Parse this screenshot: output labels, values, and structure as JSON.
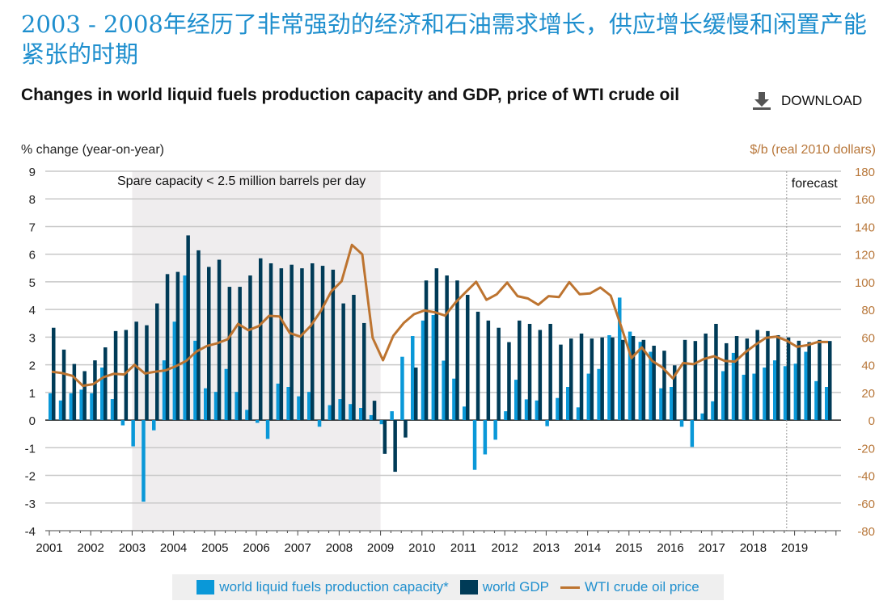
{
  "headline": "2003 - 2008年经历了非常强劲的经济和石油需求增长，供应增长缓慢和闲置产能紧张的时期",
  "download_label": "DOWNLOAD",
  "chart_data": {
    "type": "bar+line",
    "title": "Changes in world liquid fuels production capacity and GDP, price of WTI crude oil",
    "ylabel": "% change (year-on-year)",
    "y2label": "$/b (real 2010 dollars)",
    "ylim": [
      -4,
      9
    ],
    "y2lim": [
      -80,
      180
    ],
    "yticks": [
      -4,
      -3,
      -2,
      -1,
      0,
      1,
      2,
      3,
      4,
      5,
      6,
      7,
      8,
      9
    ],
    "y2ticks": [
      -80,
      -60,
      -40,
      -20,
      0,
      20,
      40,
      60,
      80,
      100,
      120,
      140,
      160,
      180
    ],
    "xticks": [
      "2001",
      "2002",
      "2003",
      "2004",
      "2005",
      "2006",
      "2007",
      "2008",
      "2009",
      "2010",
      "2011",
      "2012",
      "2013",
      "2014",
      "2015",
      "2016",
      "2017",
      "2018",
      "2019"
    ],
    "frequency": "quarterly, 2001Q1-2019Q4",
    "grid": true,
    "legend_placement": "bottom",
    "annotations": {
      "shaded": "Spare capacity < 2.5 million barrels per day",
      "shaded_range": [
        "2003",
        "2009"
      ],
      "forecast": "forecast",
      "forecast_start": "2018Q3"
    },
    "colors": {
      "capacity": "#0a98d8",
      "gdp": "#003b57",
      "wti": "#bd7430"
    },
    "series": [
      {
        "name": "world liquid fuels production capacity*",
        "type": "bar",
        "values": [
          0.97,
          0.71,
          0.97,
          1.1,
          0.97,
          1.9,
          0.76,
          -0.19,
          -0.95,
          -2.95,
          -0.37,
          2.16,
          3.56,
          5.23,
          2.87,
          1.15,
          1.02,
          1.85,
          1.02,
          0.37,
          -0.1,
          -0.68,
          1.32,
          1.2,
          0.86,
          1.02,
          -0.24,
          0.54,
          0.76,
          0.58,
          0.44,
          0.18,
          -0.15,
          0.32,
          2.29,
          3.04,
          3.6,
          3.8,
          2.15,
          1.5,
          0.49,
          -1.8,
          -1.24,
          -0.71,
          0.32,
          1.46,
          0.75,
          0.71,
          -0.22,
          0.8,
          1.2,
          0.46,
          1.68,
          1.85,
          3.07,
          4.43,
          3.2,
          2.83,
          2.47,
          1.15,
          1.2,
          -0.24,
          -0.97,
          0.24,
          0.68,
          1.77,
          2.43,
          1.64,
          1.68,
          1.9,
          2.16,
          1.95,
          2.04,
          2.47,
          1.41,
          1.2
        ]
      },
      {
        "name": "world GDP",
        "type": "bar",
        "values": [
          3.34,
          2.55,
          2.03,
          1.77,
          2.16,
          2.63,
          3.22,
          3.26,
          3.56,
          3.43,
          4.22,
          5.28,
          5.36,
          6.68,
          6.14,
          5.54,
          5.8,
          4.82,
          4.82,
          5.23,
          5.85,
          5.67,
          5.49,
          5.62,
          5.49,
          5.67,
          5.58,
          5.44,
          4.22,
          4.53,
          3.51,
          0.7,
          -1.22,
          -1.87,
          -0.63,
          1.9,
          5.05,
          5.49,
          5.23,
          5.05,
          4.53,
          3.92,
          3.6,
          3.34,
          2.82,
          3.6,
          3.48,
          3.26,
          3.48,
          2.73,
          2.95,
          3.13,
          2.95,
          2.99,
          2.99,
          2.9,
          3.04,
          2.9,
          2.69,
          2.51,
          1.98,
          2.9,
          2.86,
          3.13,
          3.48,
          2.78,
          3.04,
          2.95,
          3.26,
          3.22,
          3.07,
          2.99,
          2.87,
          2.82,
          2.9,
          2.86
        ]
      },
      {
        "name": "WTI crude oil price",
        "type": "line",
        "axis": "right",
        "values": [
          35,
          34,
          32,
          24.8,
          26,
          31,
          33.5,
          33,
          40,
          33.7,
          35,
          36,
          39,
          42.9,
          49.7,
          53.6,
          55.6,
          58.5,
          69.6,
          65,
          68,
          75.4,
          75,
          63,
          60.4,
          68,
          79,
          93,
          100.4,
          126.7,
          119.9,
          59.5,
          43.3,
          61,
          70.2,
          76.6,
          79.3,
          78,
          75.6,
          85,
          92.6,
          100,
          87,
          91,
          99.4,
          89.7,
          88,
          83.4,
          89.7,
          89,
          99.8,
          91,
          91.6,
          95.9,
          90,
          68,
          44.8,
          52.6,
          42.9,
          38,
          30.2,
          41.3,
          40.4,
          44.2,
          46.2,
          42.9,
          42.3,
          49,
          54.6,
          59.5,
          60.4,
          57.5,
          53,
          54.2,
          56.5,
          56.5
        ]
      }
    ]
  }
}
